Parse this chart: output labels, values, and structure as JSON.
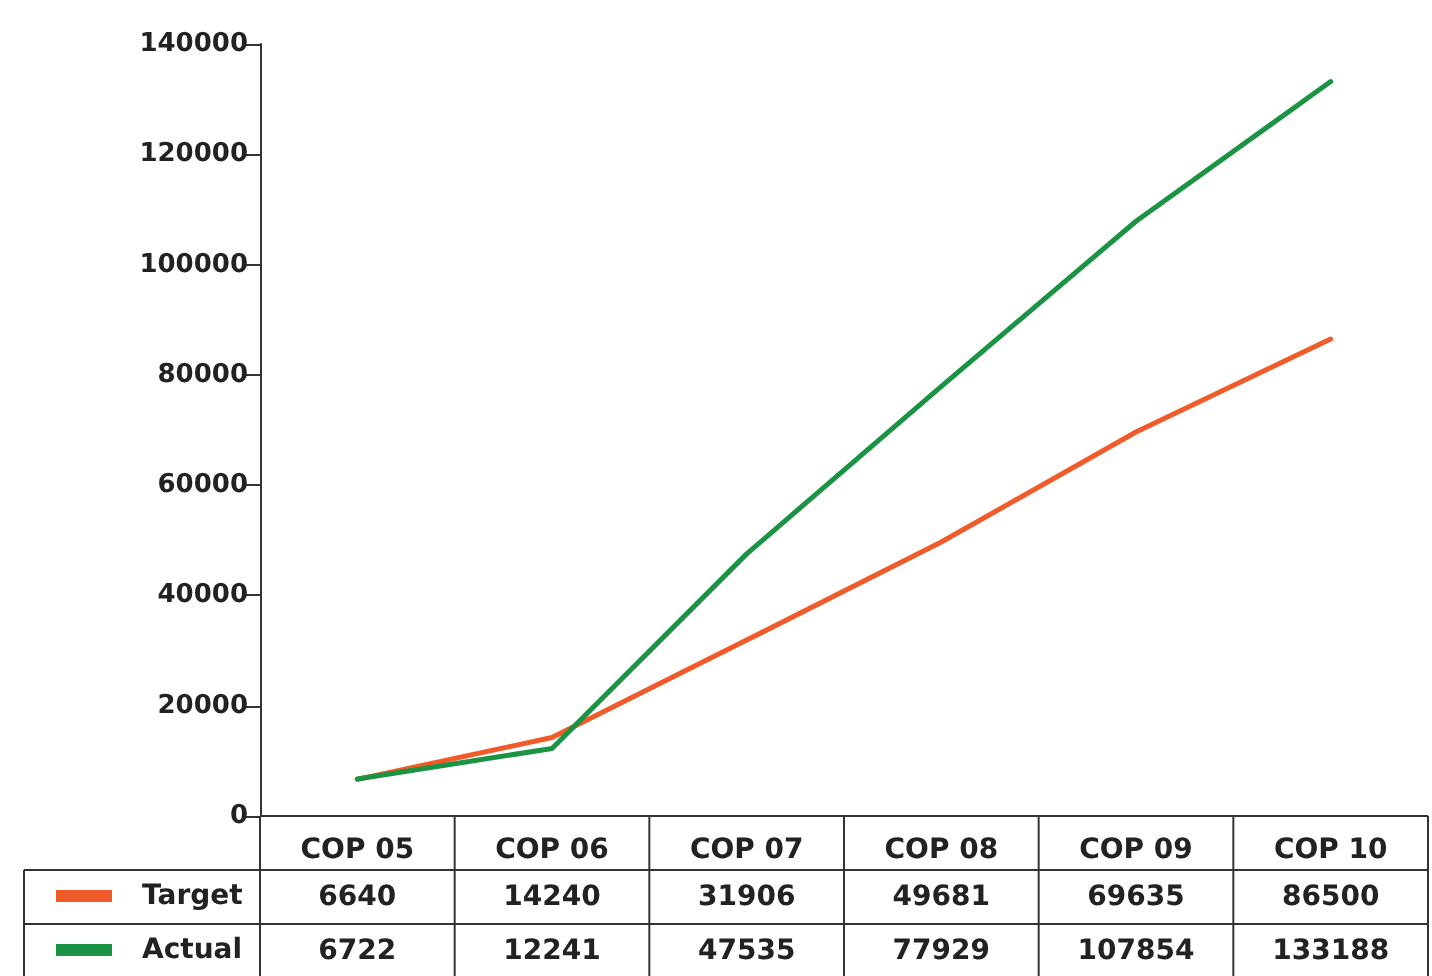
{
  "chart_data": {
    "type": "line",
    "categories": [
      "COP 05",
      "COP 06",
      "COP 07",
      "COP 08",
      "COP 09",
      "COP 10"
    ],
    "series": [
      {
        "name": "Target",
        "color": "#f15a29",
        "values": [
          6640,
          14240,
          31906,
          49681,
          69635,
          86500
        ]
      },
      {
        "name": "Actual",
        "color": "#1a9444",
        "values": [
          6722,
          12241,
          47535,
          77929,
          107854,
          133188
        ]
      }
    ],
    "ylim": [
      0,
      140000
    ],
    "yticks": [
      0,
      20000,
      40000,
      60000,
      80000,
      100000,
      120000,
      140000
    ],
    "grid": false,
    "legend": "bottom left",
    "marker": "none",
    "line_style": "solid",
    "data_labels": true
  }
}
